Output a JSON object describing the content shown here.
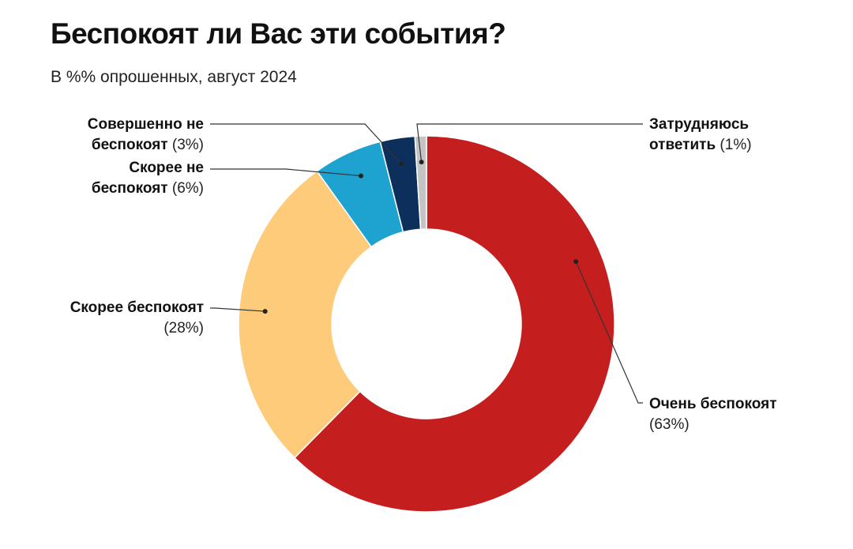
{
  "title": "Беспокоят ли Вас эти события?",
  "subtitle": "В %% опрошенных, август 2024",
  "chart_data": {
    "type": "pie",
    "donut": true,
    "title": "Беспокоят ли Вас эти события?",
    "subtitle": "В %% опрошенных, август 2024",
    "slices": [
      {
        "label_lines": [
          "Очень беспокоят"
        ],
        "pct_text": "(63%)",
        "value": 63,
        "color": "#c41e1e"
      },
      {
        "label_lines": [
          "Скорее беспокоят"
        ],
        "pct_text": "(28%)",
        "value": 28,
        "color": "#fdcb7a"
      },
      {
        "label_lines": [
          "Скорее не",
          "беспокоят"
        ],
        "pct_text": "(6%)",
        "value": 6,
        "color": "#1ea2d0"
      },
      {
        "label_lines": [
          "Совершенно не",
          "беспокоят"
        ],
        "pct_text": "(3%)",
        "value": 3,
        "color": "#0c2f5c"
      },
      {
        "label_lines": [
          "Затрудняюсь",
          "ответить"
        ],
        "pct_text": "(1%)",
        "value": 1,
        "color": "#c4c4c4"
      }
    ]
  }
}
